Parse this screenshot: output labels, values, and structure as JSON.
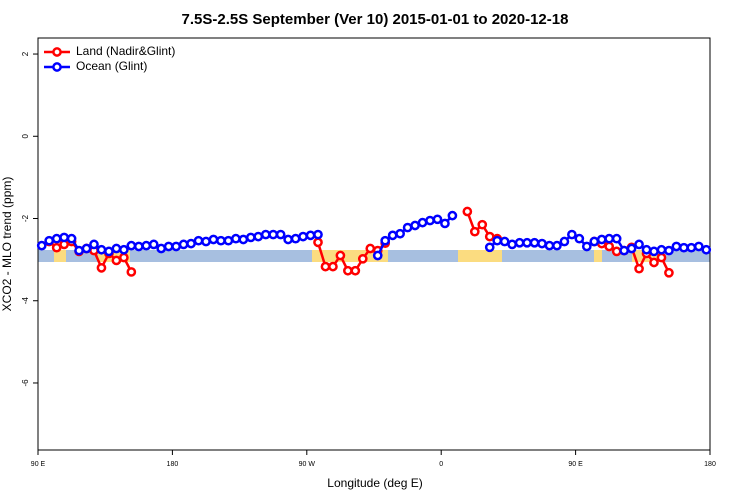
{
  "chart_data": {
    "type": "line",
    "title": "7.5S-2.5S September (Ver 10)   2015-01-01 to 2020-12-18",
    "x_label": "Longitude (deg E)",
    "y_label": "XCO2 - MLO trend (ppm)",
    "legend": "top-left",
    "xlim": [
      90,
      540
    ],
    "ylim": [
      -7.63,
      2.39
    ],
    "xticks": [
      {
        "value": 90,
        "label": "90 E"
      },
      180,
      {
        "value": 270,
        "label": "90 W"
      },
      {
        "value": 360,
        "label": "0"
      },
      {
        "value": 450,
        "label": "90 E"
      },
      {
        "value": 540,
        "label": "180"
      }
    ],
    "yticks": [
      2,
      0,
      -2,
      -4,
      -6
    ],
    "x": [
      92.5,
      97.5,
      102.5,
      107.5,
      112.5,
      117.5,
      122.5,
      127.5,
      132.5,
      137.5,
      142.5,
      147.5,
      152.5,
      157.5,
      162.5,
      167.5,
      172.5,
      177.5,
      182.5,
      187.5,
      192.5,
      197.5,
      202.5,
      207.5,
      212.5,
      217.5,
      222.5,
      227.5,
      232.5,
      237.5,
      242.5,
      247.5,
      252.5,
      257.5,
      262.5,
      267.5,
      272.5,
      277.5,
      282.5,
      287.5,
      292.5,
      297.5,
      302.5,
      307.5,
      312.5,
      317.5,
      322.5,
      327.5,
      332.5,
      337.5,
      342.5,
      347.5,
      352.5,
      357.5,
      362.5,
      367.5,
      372.5,
      377.5,
      382.5,
      387.5,
      392.5,
      397.5,
      402.5,
      407.5,
      412.5,
      417.5,
      422.5,
      427.5,
      432.5,
      437.5,
      442.5,
      447.5,
      452.5,
      457.5,
      462.5,
      467.5,
      472.5,
      477.5,
      482.5,
      487.5,
      492.5,
      497.5,
      502.5,
      507.5,
      512.5,
      517.5,
      522.5,
      527.5,
      532.5,
      537.5
    ],
    "series": [
      {
        "name": "Land (Nadir&Glint)",
        "color": "#ff0000",
        "values": [
          null,
          -2.56,
          -2.71,
          -2.63,
          -2.56,
          -2.8,
          -2.73,
          -2.78,
          -3.2,
          -2.85,
          -3.02,
          -2.95,
          -3.3,
          null,
          null,
          null,
          null,
          null,
          null,
          null,
          null,
          null,
          null,
          null,
          null,
          null,
          null,
          null,
          null,
          null,
          null,
          null,
          null,
          null,
          null,
          null,
          null,
          -2.58,
          -3.17,
          -3.17,
          -2.9,
          -3.27,
          -3.27,
          -2.98,
          -2.73,
          -2.78,
          -2.6,
          null,
          null,
          null,
          null,
          null,
          null,
          null,
          null,
          null,
          null,
          -1.83,
          -2.32,
          -2.15,
          -2.44,
          -2.49,
          null,
          null,
          null,
          null,
          null,
          null,
          null,
          null,
          null,
          null,
          null,
          null,
          -2.56,
          -2.61,
          -2.68,
          -2.8,
          -2.78,
          -2.7,
          -3.22,
          -2.85,
          -3.07,
          -2.95,
          -3.32,
          null,
          null,
          null,
          null,
          null
        ]
      },
      {
        "name": "Ocean (Glint)",
        "color": "#0000ff",
        "values": [
          -2.66,
          -2.54,
          -2.49,
          -2.46,
          -2.49,
          -2.78,
          -2.73,
          -2.63,
          -2.76,
          -2.8,
          -2.73,
          -2.76,
          -2.66,
          -2.68,
          -2.66,
          -2.63,
          -2.73,
          -2.68,
          -2.68,
          -2.63,
          -2.61,
          -2.54,
          -2.56,
          -2.51,
          -2.54,
          -2.54,
          -2.49,
          -2.51,
          -2.46,
          -2.44,
          -2.39,
          -2.39,
          -2.39,
          -2.51,
          -2.49,
          -2.44,
          -2.41,
          -2.39,
          null,
          null,
          null,
          null,
          null,
          null,
          null,
          -2.9,
          -2.54,
          -2.41,
          -2.37,
          -2.22,
          -2.17,
          -2.1,
          -2.05,
          -2.02,
          -2.12,
          -1.93,
          null,
          null,
          null,
          null,
          -2.7,
          -2.54,
          -2.56,
          -2.63,
          -2.59,
          -2.59,
          -2.59,
          -2.61,
          -2.66,
          -2.66,
          -2.56,
          -2.39,
          -2.49,
          -2.68,
          -2.56,
          -2.51,
          -2.49,
          -2.49,
          -2.78,
          -2.73,
          -2.63,
          -2.76,
          -2.8,
          -2.76,
          -2.78,
          -2.68,
          -2.71,
          -2.71,
          -2.68,
          -2.76
        ]
      }
    ]
  }
}
